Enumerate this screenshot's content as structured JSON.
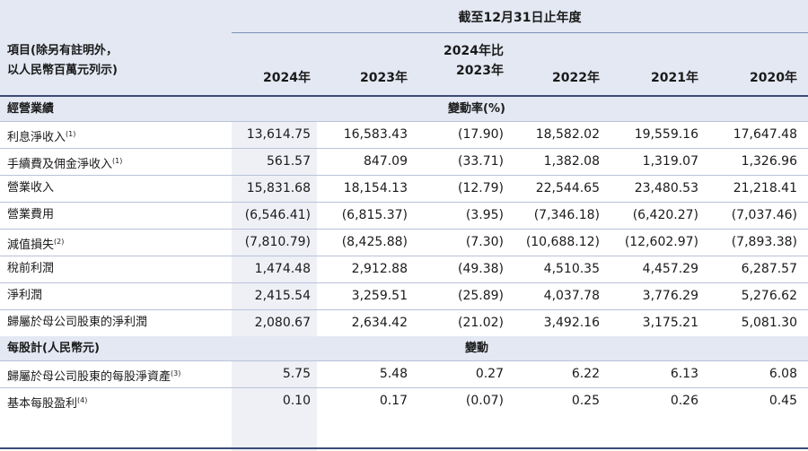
{
  "header": {
    "period_label": "截至12月31日止年度",
    "item_label_line1": "項目(除另有註明外，",
    "item_label_line2": "以人民幣百萬元列示)",
    "col_2024": "2024年",
    "col_2023": "2023年",
    "col_change_line1": "2024年比",
    "col_change_line2": "2023年",
    "col_2022": "2022年",
    "col_2021": "2021年",
    "col_2020": "2020年"
  },
  "sections": [
    {
      "title": "經營業績",
      "change_label": "變動率(%)",
      "rows": [
        {
          "label": "利息淨收入",
          "note": "(1)",
          "v2024": "13,614.75",
          "v2023": "16,583.43",
          "change": "(17.90)",
          "v2022": "18,582.02",
          "v2021": "19,559.16",
          "v2020": "17,647.48"
        },
        {
          "label": "手續費及佣金淨收入",
          "note": "(1)",
          "v2024": "561.57",
          "v2023": "847.09",
          "change": "(33.71)",
          "v2022": "1,382.08",
          "v2021": "1,319.07",
          "v2020": "1,326.96"
        },
        {
          "label": "營業收入",
          "note": "",
          "v2024": "15,831.68",
          "v2023": "18,154.13",
          "change": "(12.79)",
          "v2022": "22,544.65",
          "v2021": "23,480.53",
          "v2020": "21,218.41"
        },
        {
          "label": "營業費用",
          "note": "",
          "v2024": "(6,546.41)",
          "v2023": "(6,815.37)",
          "change": "(3.95)",
          "v2022": "(7,346.18)",
          "v2021": "(6,420.27)",
          "v2020": "(7,037.46)"
        },
        {
          "label": "減值損失",
          "note": "(2)",
          "v2024": "(7,810.79)",
          "v2023": "(8,425.88)",
          "change": "(7.30)",
          "v2022": "(10,688.12)",
          "v2021": "(12,602.97)",
          "v2020": "(7,893.38)"
        },
        {
          "label": "稅前利潤",
          "note": "",
          "v2024": "1,474.48",
          "v2023": "2,912.88",
          "change": "(49.38)",
          "v2022": "4,510.35",
          "v2021": "4,457.29",
          "v2020": "6,287.57"
        },
        {
          "label": "淨利潤",
          "note": "",
          "v2024": "2,415.54",
          "v2023": "3,259.51",
          "change": "(25.89)",
          "v2022": "4,037.78",
          "v2021": "3,776.29",
          "v2020": "5,276.62"
        },
        {
          "label": "歸屬於母公司股東的淨利潤",
          "note": "",
          "v2024": "2,080.67",
          "v2023": "2,634.42",
          "change": "(21.02)",
          "v2022": "3,492.16",
          "v2021": "3,175.21",
          "v2020": "5,081.30"
        }
      ]
    },
    {
      "title": "每股計(人民幣元)",
      "change_label": "變動",
      "rows": [
        {
          "label": "歸屬於母公司股東的每股淨資產",
          "note": "(3)",
          "v2024": "5.75",
          "v2023": "5.48",
          "change": "0.27",
          "v2022": "6.22",
          "v2021": "6.13",
          "v2020": "6.08"
        },
        {
          "label": "基本每股盈利",
          "note": "(4)",
          "v2024": "0.10",
          "v2023": "0.17",
          "change": "(0.07)",
          "v2022": "0.25",
          "v2021": "0.26",
          "v2020": "0.45"
        }
      ]
    }
  ],
  "colors": {
    "header_band": "#e3e8f3",
    "highlight_column": "#eef0f6",
    "rule_dark": "#3b4a78",
    "rule_light": "#b9c2d8"
  }
}
